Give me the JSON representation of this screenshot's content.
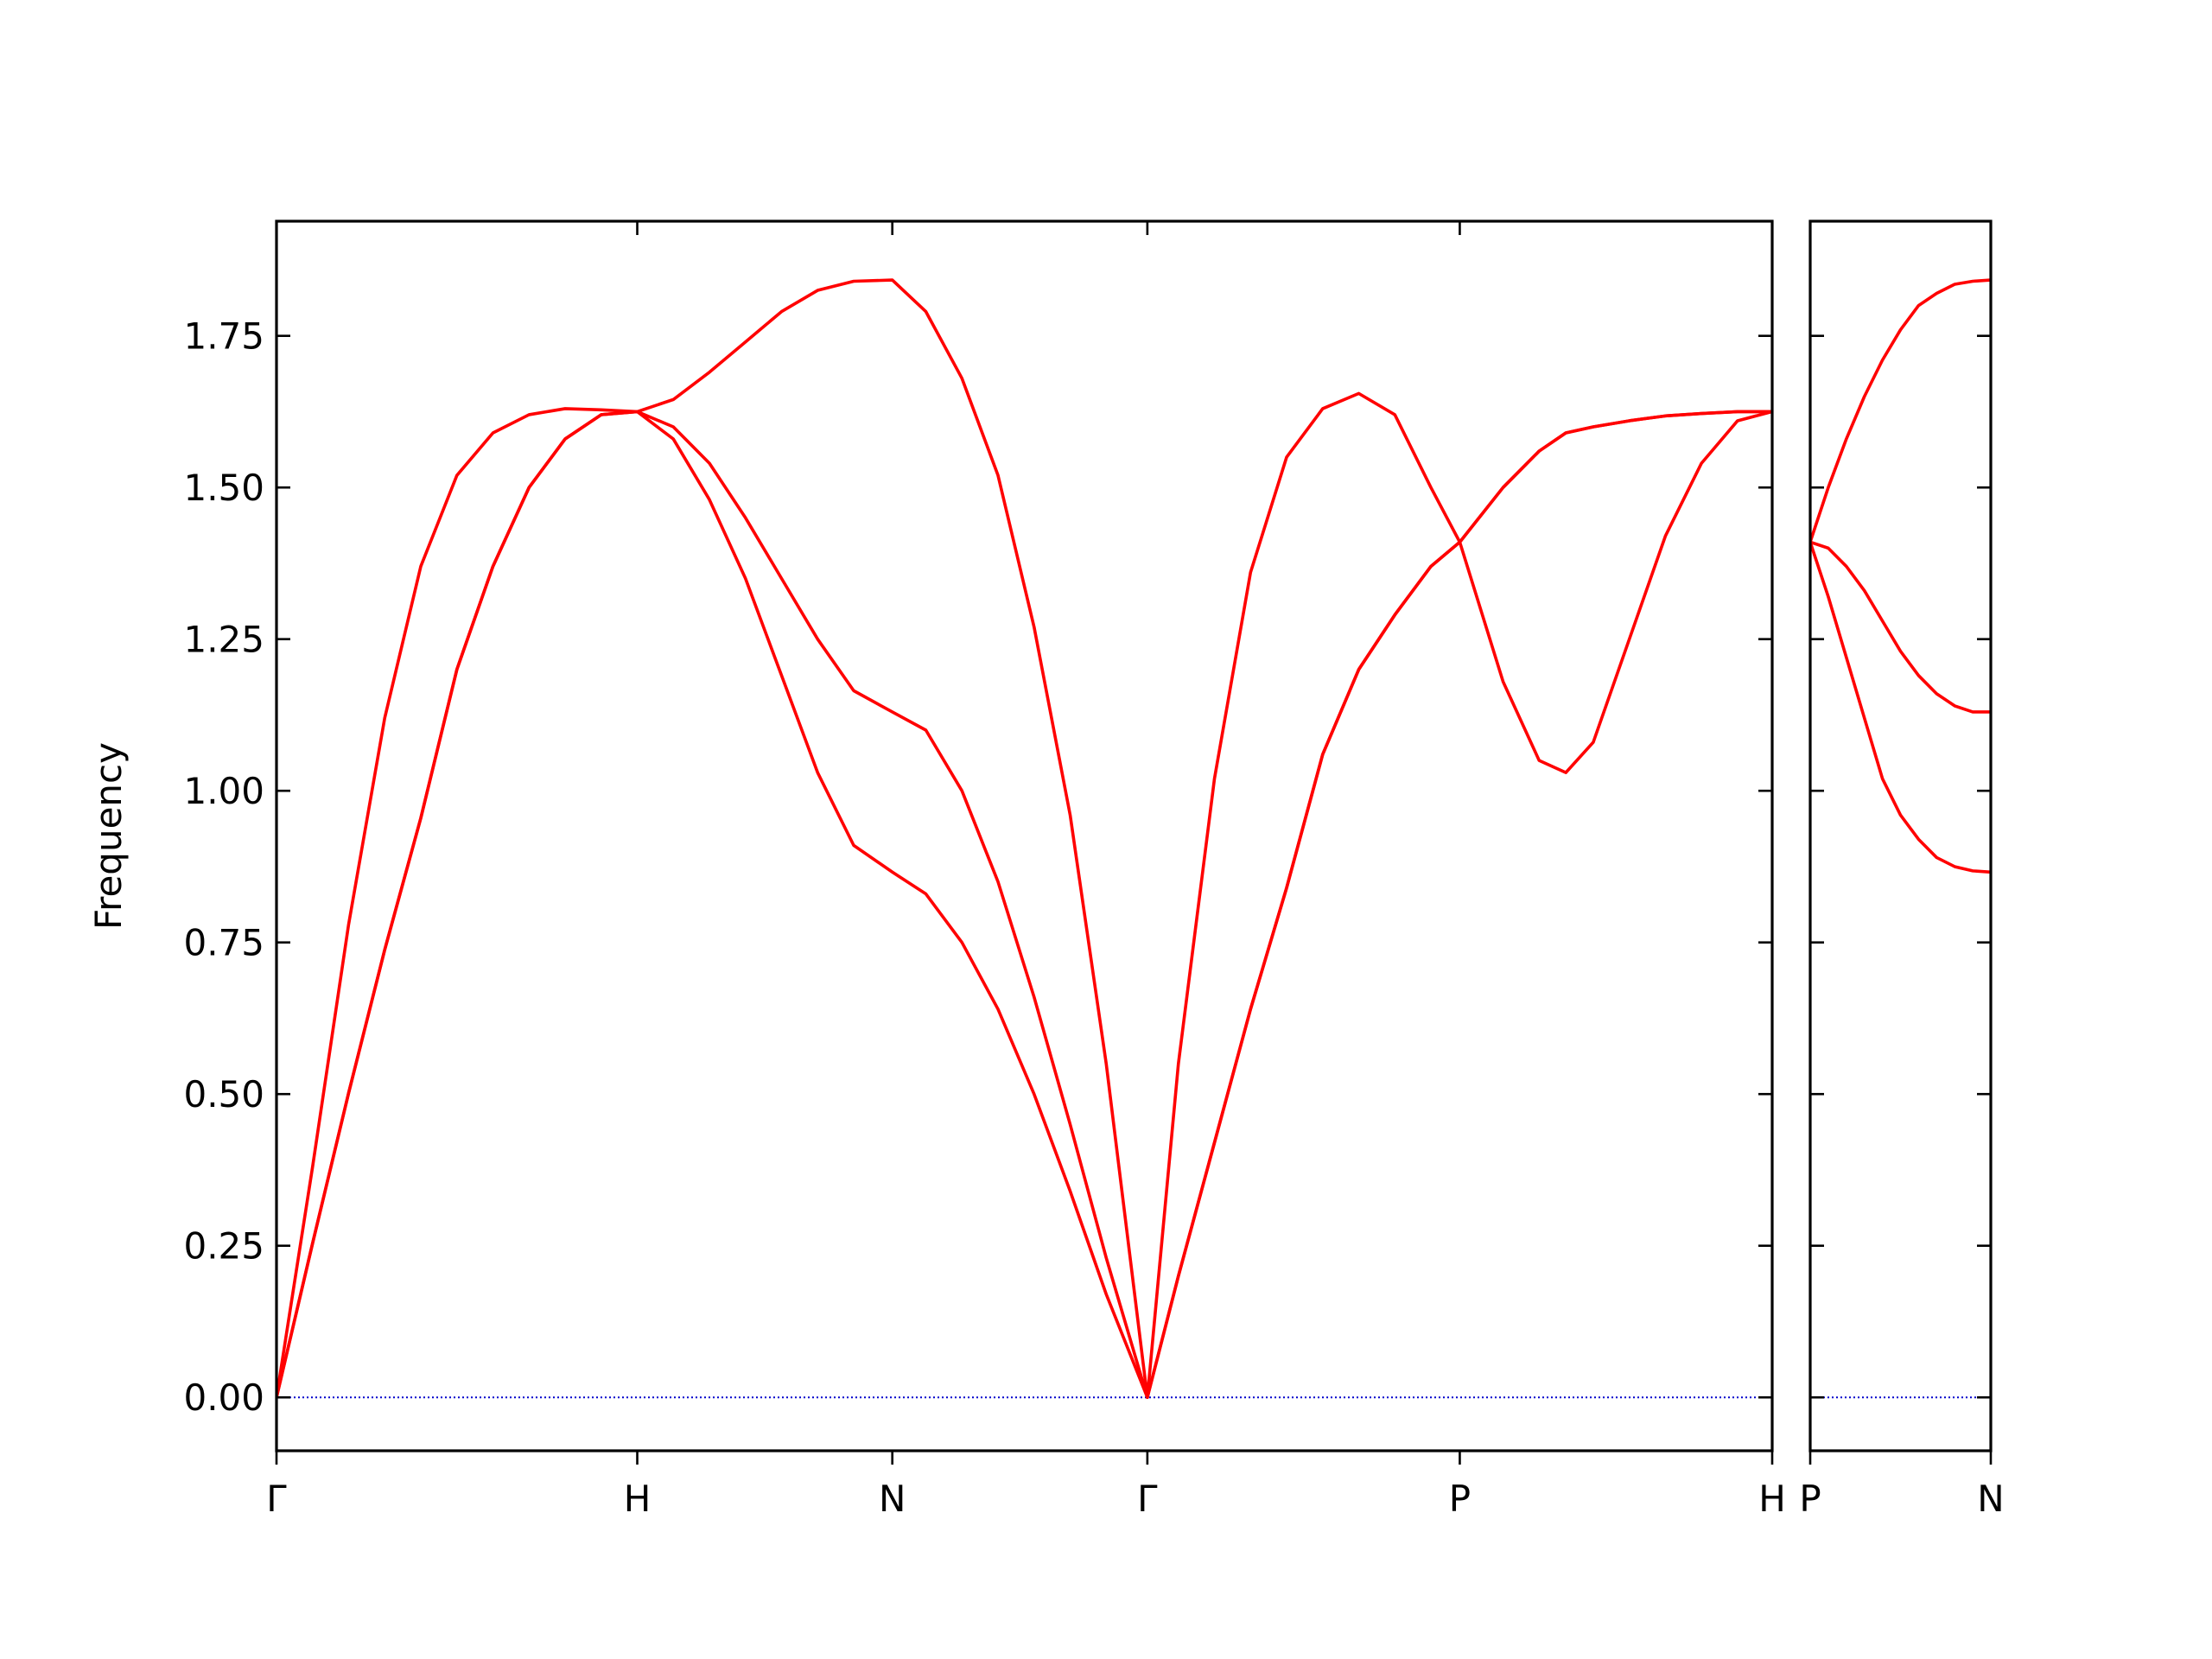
{
  "chart_data": [
    {
      "type": "line",
      "ylabel": "Frequency",
      "x": [
        0,
        0.1,
        0.2,
        0.3,
        0.4,
        0.5,
        0.6,
        0.7,
        0.8,
        0.9,
        1,
        1.1,
        1.2,
        1.3,
        1.4,
        1.5,
        1.6,
        1.707,
        1.8,
        1.9,
        2.0,
        2.1,
        2.2,
        2.3,
        2.414,
        2.5,
        2.6,
        2.7,
        2.8,
        2.9,
        3.0,
        3.1,
        3.2,
        3.28,
        3.4,
        3.5,
        3.574,
        3.65,
        3.75,
        3.85,
        3.95,
        4.05,
        4.146
      ],
      "series": [
        {
          "color": "#ff0000",
          "values": [
            0,
            0.38,
            0.78,
            1.12,
            1.37,
            1.52,
            1.59,
            1.62,
            1.63,
            1.628,
            1.625,
            1.645,
            1.69,
            1.74,
            1.79,
            1.825,
            1.84,
            1.842,
            1.79,
            1.68,
            1.52,
            1.27,
            0.96,
            0.55,
            0,
            0.55,
            1.02,
            1.36,
            1.55,
            1.63,
            1.655,
            1.62,
            1.5,
            1.41,
            1.18,
            1.05,
            1.03,
            1.08,
            1.25,
            1.42,
            1.54,
            1.61,
            1.625
          ]
        },
        {
          "color": "#ff0000",
          "values": [
            0,
            0.254,
            0.502,
            0.738,
            0.955,
            1.2,
            1.37,
            1.5,
            1.58,
            1.62,
            1.625,
            1.6,
            1.54,
            1.45,
            1.35,
            1.25,
            1.165,
            1.13,
            1.1,
            1.0,
            0.85,
            0.66,
            0.45,
            0.23,
            0,
            0.2,
            0.42,
            0.64,
            0.84,
            1.06,
            1.2,
            1.29,
            1.37,
            1.41,
            1.5,
            1.56,
            1.59,
            1.6,
            1.61,
            1.618,
            1.622,
            1.625,
            1.625
          ]
        },
        {
          "color": "#ff0000",
          "values": [
            0,
            0.254,
            0.502,
            0.738,
            0.955,
            1.2,
            1.37,
            1.5,
            1.58,
            1.62,
            1.625,
            1.58,
            1.48,
            1.35,
            1.19,
            1.03,
            0.91,
            0.866,
            0.83,
            0.75,
            0.64,
            0.5,
            0.34,
            0.17,
            0,
            0.2,
            0.42,
            0.64,
            0.84,
            1.06,
            1.2,
            1.29,
            1.37,
            1.41,
            1.5,
            1.56,
            1.59,
            1.6,
            1.61,
            1.618,
            1.622,
            1.625,
            1.625
          ]
        }
      ],
      "xlim": [
        0,
        4.146
      ],
      "xticks": [
        {
          "value": 0,
          "label": "Γ"
        },
        {
          "value": 1,
          "label": "H"
        },
        {
          "value": 1.707,
          "label": "N"
        },
        {
          "value": 2.414,
          "label": "Γ"
        },
        {
          "value": 3.28,
          "label": "P"
        },
        {
          "value": 4.146,
          "label": "H"
        }
      ],
      "ylim": [
        -0.088,
        1.939
      ],
      "yticks": [
        {
          "value": 0,
          "label": "0.00"
        },
        {
          "value": 0.25,
          "label": "0.25"
        },
        {
          "value": 0.5,
          "label": "0.50"
        },
        {
          "value": 0.75,
          "label": "0.75"
        },
        {
          "value": 1,
          "label": "1.00"
        },
        {
          "value": 1.25,
          "label": "1.25"
        },
        {
          "value": 1.5,
          "label": "1.50"
        },
        {
          "value": 1.75,
          "label": "1.75"
        }
      ],
      "hline": 0,
      "hline_color": "#0000cc"
    },
    {
      "type": "line",
      "x": [
        0,
        0.05,
        0.1,
        0.15,
        0.2,
        0.25,
        0.3,
        0.35,
        0.4,
        0.45,
        0.5
      ],
      "series": [
        {
          "color": "#ff0000",
          "values": [
            1.41,
            1.5,
            1.58,
            1.65,
            1.71,
            1.76,
            1.8,
            1.82,
            1.835,
            1.84,
            1.842
          ]
        },
        {
          "color": "#ff0000",
          "values": [
            1.41,
            1.4,
            1.37,
            1.33,
            1.28,
            1.23,
            1.19,
            1.16,
            1.14,
            1.13,
            1.13
          ]
        },
        {
          "color": "#ff0000",
          "values": [
            1.41,
            1.32,
            1.22,
            1.12,
            1.02,
            0.96,
            0.92,
            0.89,
            0.875,
            0.868,
            0.866
          ]
        }
      ],
      "xlim": [
        0,
        0.5
      ],
      "xticks": [
        {
          "value": 0,
          "label": "P"
        },
        {
          "value": 0.5,
          "label": "N"
        }
      ],
      "ylim": [
        -0.088,
        1.939
      ],
      "yticks": [
        0,
        0.25,
        0.5,
        0.75,
        1,
        1.25,
        1.5,
        1.75
      ],
      "show_ytick_labels": false,
      "hline": 0,
      "hline_color": "#0000cc"
    }
  ]
}
